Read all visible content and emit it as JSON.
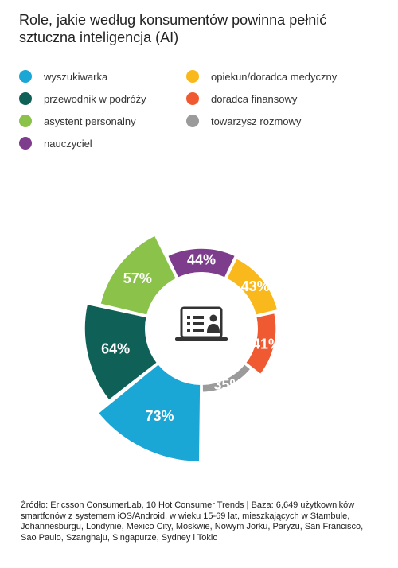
{
  "title": "Role, jakie według konsumentów powinna pełnić sztuczna inteligencja (AI)",
  "footnote": "Źródło: Ericsson ConsumerLab, 10 Hot Consumer Trends | Baza: 6,649 użytkowników smartfonów z systemem iOS/Android, w wieku 15-69 lat, mieszkających w Stambule, Johannesburgu, Londynie, Mexico City, Moskwie, Nowym Jorku, Paryżu, San Francisco, Sao Paulo, Szanghaju, Singapurze, Sydney i Tokio",
  "center_icon": "presentation-screen-icon",
  "chart_data": {
    "type": "pie",
    "variant": "radial-donut",
    "unit": "%",
    "legend_position": "top",
    "categories": [
      "wyszukiwarka",
      "przewodnik w podróży",
      "asystent personalny",
      "nauczyciel",
      "opiekun/doradca medyczny",
      "doradca finansowy",
      "towarzysz rozmowy"
    ],
    "values": [
      73,
      64,
      57,
      44,
      43,
      41,
      35
    ],
    "labels": [
      "73%",
      "64%",
      "57%",
      "44%",
      "43%",
      "41%",
      "35%"
    ],
    "colors": [
      "#1aa7d6",
      "#0f6158",
      "#8bc34a",
      "#7d3c8c",
      "#f9b81b",
      "#f05a32",
      "#9b9b9b"
    ]
  }
}
